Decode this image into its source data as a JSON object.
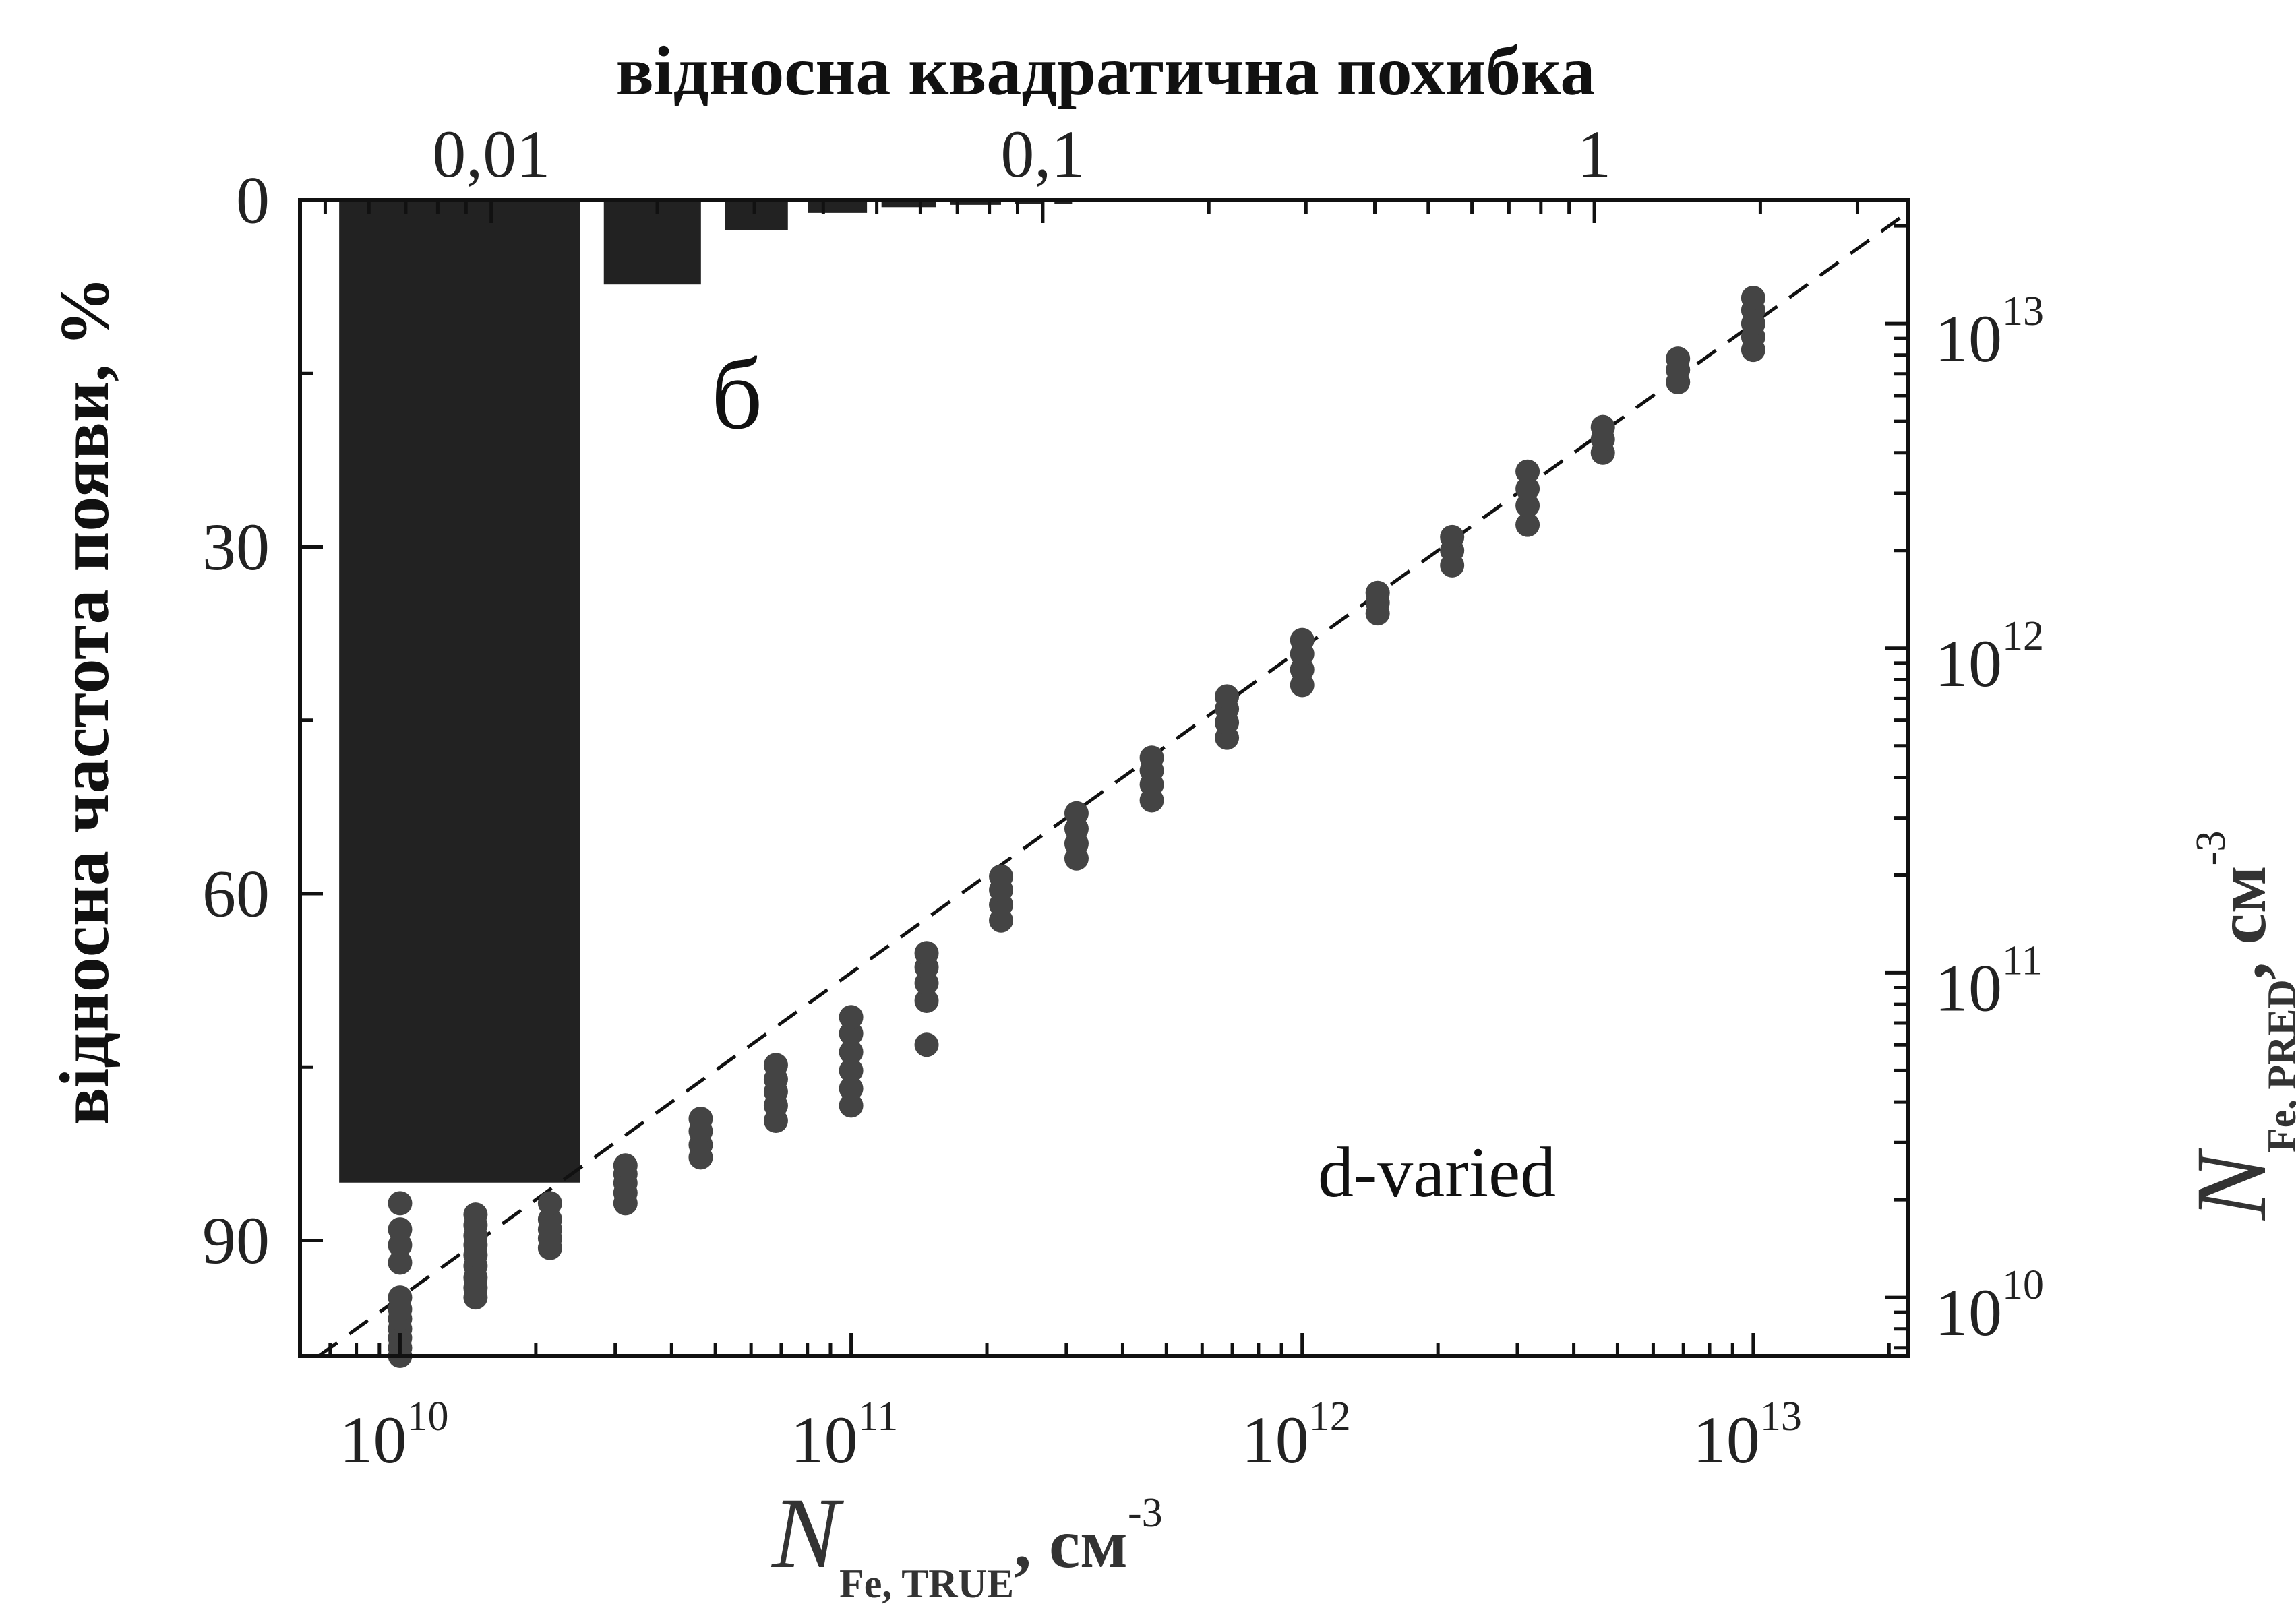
{
  "chart_data": [
    {
      "type": "bar",
      "axes": "top-left",
      "title": "",
      "xlabel": "відносна квадратична похибка",
      "ylabel": "відносна частота появи, %",
      "x_scale": "log",
      "xlim": [
        0.0045,
        3.7
      ],
      "ylim": [
        100,
        0
      ],
      "y_inverted": true,
      "x_ticks": [
        "0,01",
        "0,1",
        "1"
      ],
      "x_tick_values": [
        0.01,
        0.1,
        1
      ],
      "y_ticks": [
        "0",
        "30",
        "60",
        "90"
      ],
      "y_tick_values": [
        0,
        30,
        60,
        90
      ],
      "color": "#222222",
      "bins": [
        {
          "x0": 0.0053,
          "x1": 0.0145,
          "value": 85
        },
        {
          "x0": 0.016,
          "x1": 0.024,
          "value": 7.3
        },
        {
          "x0": 0.0265,
          "x1": 0.0345,
          "value": 2.6
        },
        {
          "x0": 0.0375,
          "x1": 0.048,
          "value": 1.1
        },
        {
          "x0": 0.051,
          "x1": 0.064,
          "value": 0.6
        },
        {
          "x0": 0.068,
          "x1": 0.084,
          "value": 0.4
        },
        {
          "x0": 0.089,
          "x1": 0.1,
          "value": 0.3
        },
        {
          "x0": 0.105,
          "x1": 0.113,
          "value": 0.3
        }
      ]
    },
    {
      "type": "scatter",
      "axes": "bottom-right",
      "xlabel": {
        "main": "N",
        "sub": "Fe, TRUE",
        "unit": ", см",
        "exp": "-3"
      },
      "ylabel": {
        "main": "N",
        "sub": "Fe, PRED",
        "unit": ", см",
        "exp": "-3"
      },
      "x_scale": "log",
      "y_scale": "log",
      "xlim": [
        6000000000.0,
        22000000000000.0
      ],
      "ylim": [
        6600000000.0,
        24000000000000.0
      ],
      "x_ticks": [
        {
          "base": "10",
          "exp": "10"
        },
        {
          "base": "10",
          "exp": "11"
        },
        {
          "base": "10",
          "exp": "12"
        },
        {
          "base": "10",
          "exp": "13"
        }
      ],
      "x_tick_values": [
        10000000000.0,
        100000000000.0,
        1000000000000.0,
        10000000000000.0
      ],
      "y_ticks": [
        {
          "base": "10",
          "exp": "10"
        },
        {
          "base": "10",
          "exp": "11"
        },
        {
          "base": "10",
          "exp": "12"
        },
        {
          "base": "10",
          "exp": "13"
        }
      ],
      "y_tick_values": [
        10000000000.0,
        100000000000.0,
        1000000000000.0,
        10000000000000.0
      ],
      "reference_line": "y = x (dashed)",
      "marker_color": "#444444",
      "groups": [
        {
          "x": 10000000000.0,
          "y": [
            6600000000.0,
            7000000000.0,
            7500000000.0,
            8000000000.0,
            8600000000.0,
            9200000000.0,
            10000000000.0,
            12800000000.0,
            14500000000.0,
            16200000000.0,
            19500000000.0
          ]
        },
        {
          "x": 14700000000.0,
          "y": [
            10000000000.0,
            10700000000.0,
            11500000000.0,
            12500000000.0,
            13500000000.0,
            14500000000.0,
            15500000000.0,
            16700000000.0,
            18000000000.0
          ]
        },
        {
          "x": 21500000000.0,
          "y": [
            14200000000.0,
            15200000000.0,
            16200000000.0,
            17400000000.0,
            19500000000.0
          ]
        },
        {
          "x": 31600000000.0,
          "y": [
            19500000000.0,
            21000000000.0,
            22500000000.0,
            24000000000.0,
            25500000000.0
          ]
        },
        {
          "x": 46400000000.0,
          "y": [
            27000000000.0,
            29500000000.0,
            32500000000.0,
            35500000000.0
          ]
        },
        {
          "x": 68100000000.0,
          "y": [
            35000000000.0,
            39000000000.0,
            43000000000.0,
            47000000000.0,
            52000000000.0
          ]
        },
        {
          "x": 100000000000.0,
          "y": [
            39000000000.0,
            44000000000.0,
            50000000000.0,
            57000000000.0,
            65000000000.0,
            73000000000.0
          ]
        },
        {
          "x": 147000000000.0,
          "y": [
            60000000000.0,
            82000000000.0,
            93000000000.0,
            104000000000.0,
            115000000000.0
          ]
        },
        {
          "x": 215000000000.0,
          "y": [
            145000000000.0,
            162000000000.0,
            180000000000.0,
            198000000000.0
          ]
        },
        {
          "x": 316000000000.0,
          "y": [
            225000000000.0,
            250000000000.0,
            278000000000.0,
            310000000000.0
          ]
        },
        {
          "x": 464000000000.0,
          "y": [
            340000000000.0,
            380000000000.0,
            420000000000.0,
            460000000000.0
          ]
        },
        {
          "x": 681000000000.0,
          "y": [
            530000000000.0,
            590000000000.0,
            650000000000.0,
            710000000000.0
          ]
        },
        {
          "x": 1000000000000.0,
          "y": [
            770000000000.0,
            860000000000.0,
            960000000000.0,
            1060000000000.0
          ]
        },
        {
          "x": 1470000000000.0,
          "y": [
            1280000000000.0,
            1380000000000.0,
            1480000000000.0
          ]
        },
        {
          "x": 2150000000000.0,
          "y": [
            1800000000000.0,
            2000000000000.0,
            2200000000000.0
          ]
        },
        {
          "x": 3160000000000.0,
          "y": [
            2400000000000.0,
            2750000000000.0,
            3100000000000.0,
            3500000000000.0
          ]
        },
        {
          "x": 4640000000000.0,
          "y": [
            4000000000000.0,
            4400000000000.0,
            4800000000000.0
          ]
        },
        {
          "x": 6810000000000.0,
          "y": [
            6600000000000.0,
            7200000000000.0,
            7800000000000.0
          ]
        },
        {
          "x": 10000000000000.0,
          "y": [
            8300000000000.0,
            9100000000000.0,
            10000000000000.0,
            11000000000000.0,
            12000000000000.0
          ]
        }
      ]
    }
  ],
  "panel_label": "б",
  "annotation": "d-varied"
}
